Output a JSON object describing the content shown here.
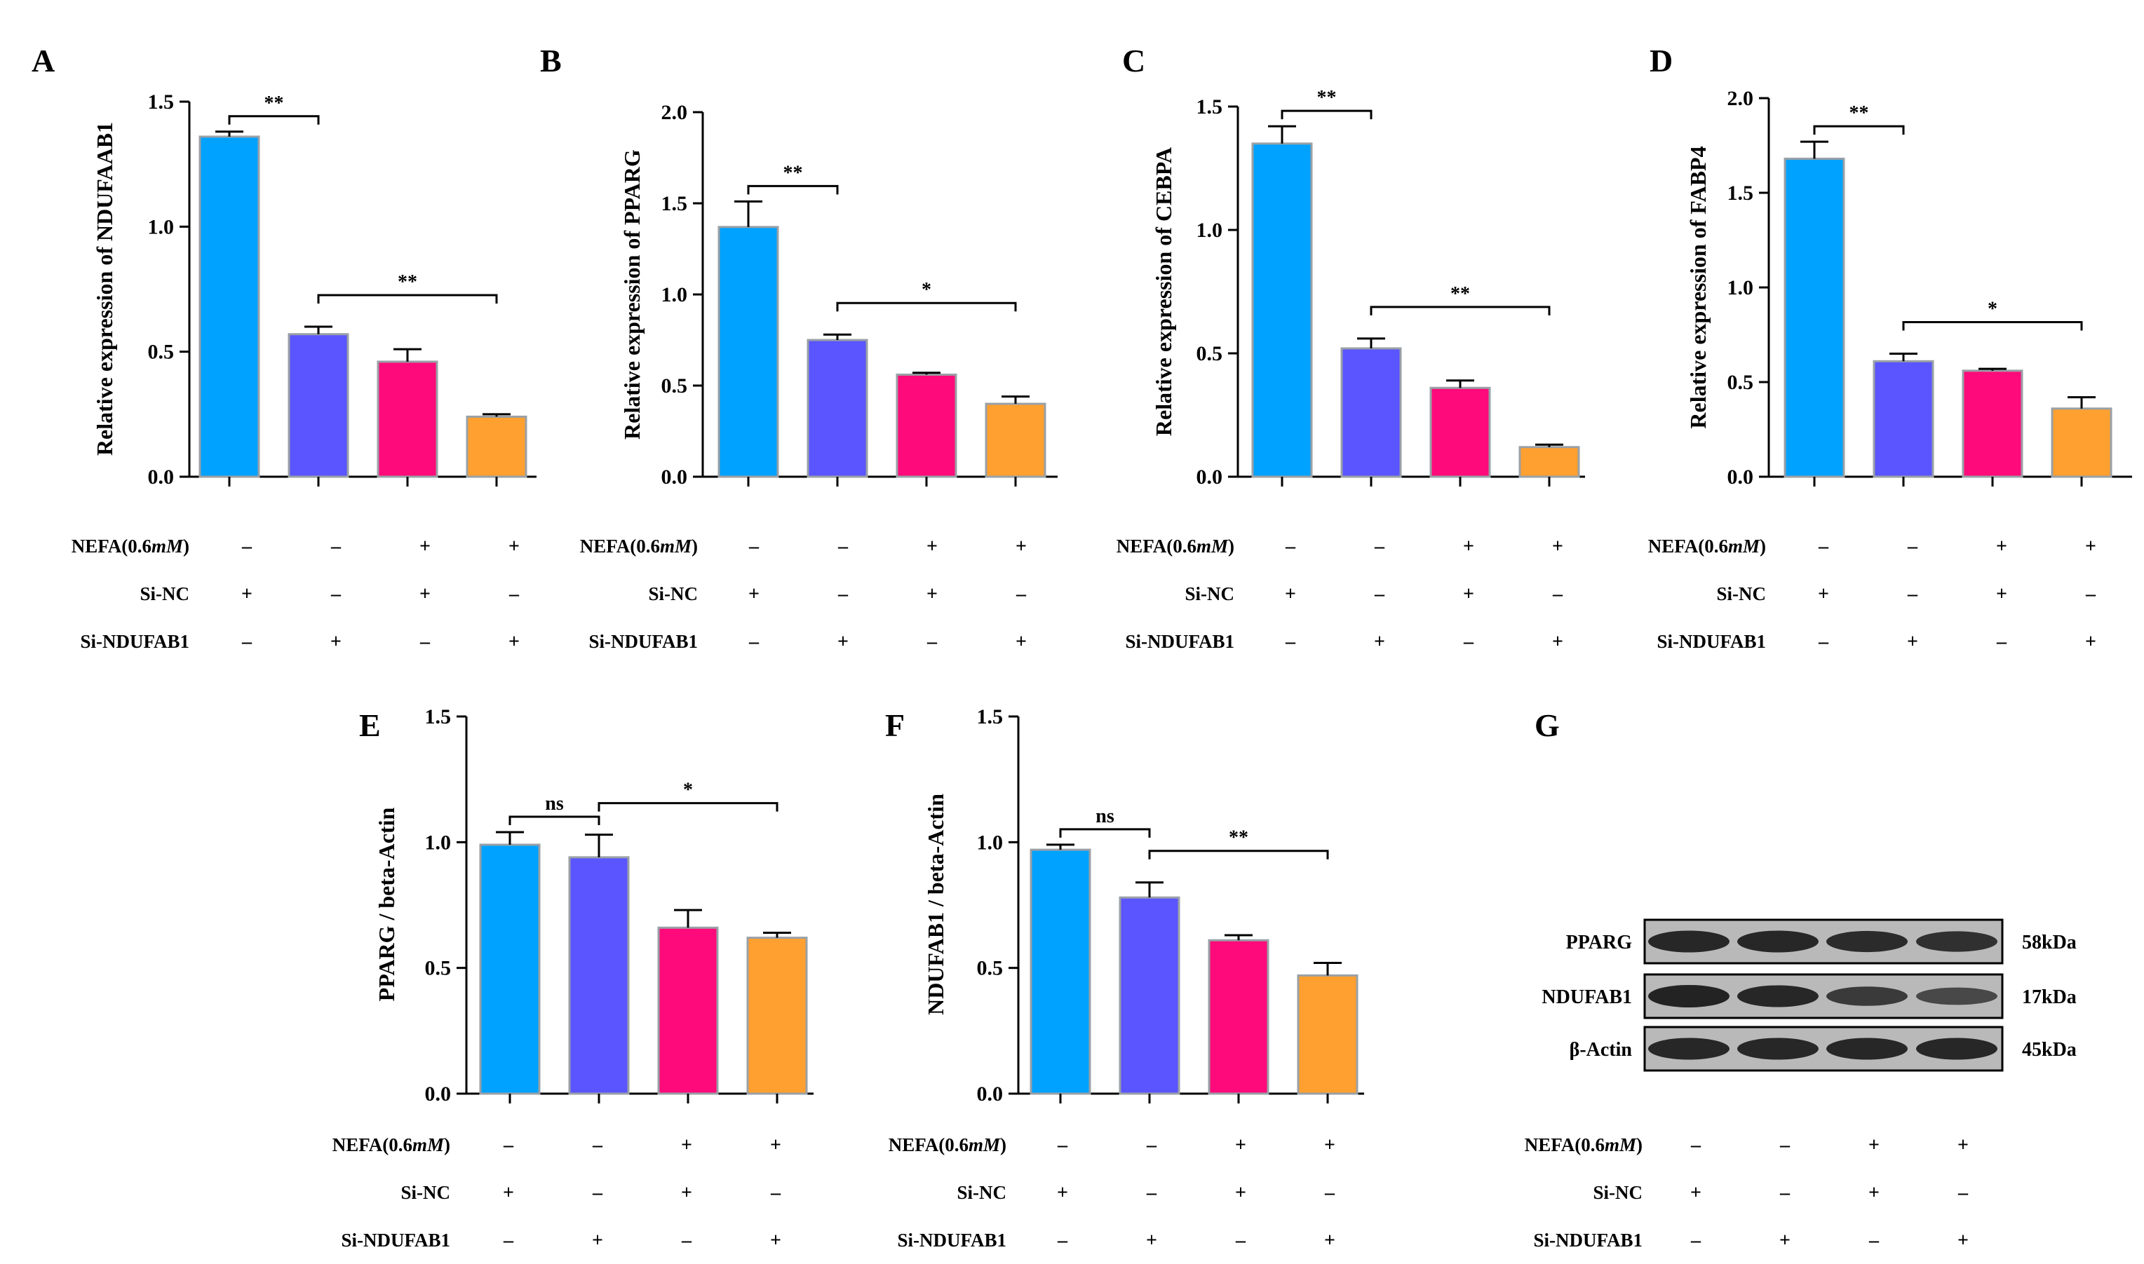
{
  "figure": {
    "colors": {
      "bar1": "#00a2ff",
      "bar2": "#5a55ff",
      "bar3": "#ff0a7a",
      "bar4": "#ffa030",
      "bar_border": "#9aa0a6",
      "axis": "#000000",
      "blot_bg": "#b9b9b9",
      "band": "#1a1a1a"
    },
    "condition_rows": [
      {
        "label": "NEFA(0.6",
        "label_italic": "mM",
        "label_close": ")",
        "values": [
          "–",
          "–",
          "+",
          "+"
        ]
      },
      {
        "label": "Si-NC",
        "values": [
          "+",
          "–",
          "+",
          "–"
        ]
      },
      {
        "label": "Si-NDUFAB1",
        "values": [
          "–",
          "+",
          "–",
          "+"
        ]
      }
    ],
    "blot": {
      "panel_letter": "G",
      "rows": [
        {
          "label": "PPARG",
          "size": "58kDa",
          "band_intensity": [
            0.95,
            0.95,
            0.9,
            0.85
          ]
        },
        {
          "label": "NDUFAB1",
          "size": "17kDa",
          "band_intensity": [
            1.0,
            0.95,
            0.75,
            0.6
          ]
        },
        {
          "label": "β-Actin",
          "size": "45kDa",
          "band_intensity": [
            0.95,
            0.95,
            0.95,
            0.95
          ]
        }
      ]
    }
  },
  "chart_data": [
    {
      "panel": "A",
      "type": "bar",
      "ylabel": "Relative expression of NDUFAAB1",
      "ylim": [
        0,
        1.5
      ],
      "yticks": [
        "0.0",
        "0.5",
        "1.0",
        "1.5"
      ],
      "values": [
        1.36,
        0.57,
        0.46,
        0.24
      ],
      "errors": [
        0.02,
        0.03,
        0.05,
        0.01
      ],
      "significance": [
        {
          "from": 0,
          "to": 1,
          "label": "**"
        },
        {
          "from": 1,
          "to": 3,
          "label": "**"
        }
      ]
    },
    {
      "panel": "B",
      "type": "bar",
      "ylabel": "Relative expression of PPARG",
      "ylim": [
        0,
        2.0
      ],
      "yticks": [
        "0.0",
        "0.5",
        "1.0",
        "1.5",
        "2.0"
      ],
      "values": [
        1.37,
        0.75,
        0.56,
        0.4
      ],
      "errors": [
        0.14,
        0.03,
        0.01,
        0.04
      ],
      "significance": [
        {
          "from": 0,
          "to": 1,
          "label": "**"
        },
        {
          "from": 1,
          "to": 3,
          "label": "*"
        }
      ]
    },
    {
      "panel": "C",
      "type": "bar",
      "ylabel": "Relative expression of CEBPA",
      "ylim": [
        0,
        1.5
      ],
      "yticks": [
        "0.0",
        "0.5",
        "1.0",
        "1.5"
      ],
      "values": [
        1.35,
        0.52,
        0.36,
        0.12
      ],
      "errors": [
        0.07,
        0.04,
        0.03,
        0.01
      ],
      "significance": [
        {
          "from": 0,
          "to": 1,
          "label": "**"
        },
        {
          "from": 1,
          "to": 3,
          "label": "**"
        }
      ]
    },
    {
      "panel": "D",
      "type": "bar",
      "ylabel": "Relative expression of FABP4",
      "ylim": [
        0,
        2.0
      ],
      "yticks": [
        "0.0",
        "0.5",
        "1.0",
        "1.5",
        "2.0"
      ],
      "values": [
        1.68,
        0.61,
        0.56,
        0.36
      ],
      "errors": [
        0.09,
        0.04,
        0.01,
        0.06
      ],
      "significance": [
        {
          "from": 0,
          "to": 1,
          "label": "**"
        },
        {
          "from": 1,
          "to": 3,
          "label": "*"
        }
      ]
    },
    {
      "panel": "E",
      "type": "bar",
      "ylabel": "PPARG / beta-Actin",
      "ylim": [
        0,
        1.5
      ],
      "yticks": [
        "0.0",
        "0.5",
        "1.0",
        "1.5"
      ],
      "values": [
        0.99,
        0.94,
        0.66,
        0.62
      ],
      "errors": [
        0.05,
        0.09,
        0.07,
        0.02
      ],
      "significance": [
        {
          "from": 0,
          "to": 1,
          "label": "ns"
        },
        {
          "from": 1,
          "to": 3,
          "label": "*"
        }
      ]
    },
    {
      "panel": "F",
      "type": "bar",
      "ylabel": "NDUFAB1 / beta-Actin",
      "ylim": [
        0,
        1.5
      ],
      "yticks": [
        "0.0",
        "0.5",
        "1.0",
        "1.5"
      ],
      "values": [
        0.97,
        0.78,
        0.61,
        0.47
      ],
      "errors": [
        0.02,
        0.06,
        0.02,
        0.05
      ],
      "significance": [
        {
          "from": 0,
          "to": 1,
          "label": "ns"
        },
        {
          "from": 1,
          "to": 3,
          "label": "**"
        }
      ]
    }
  ]
}
